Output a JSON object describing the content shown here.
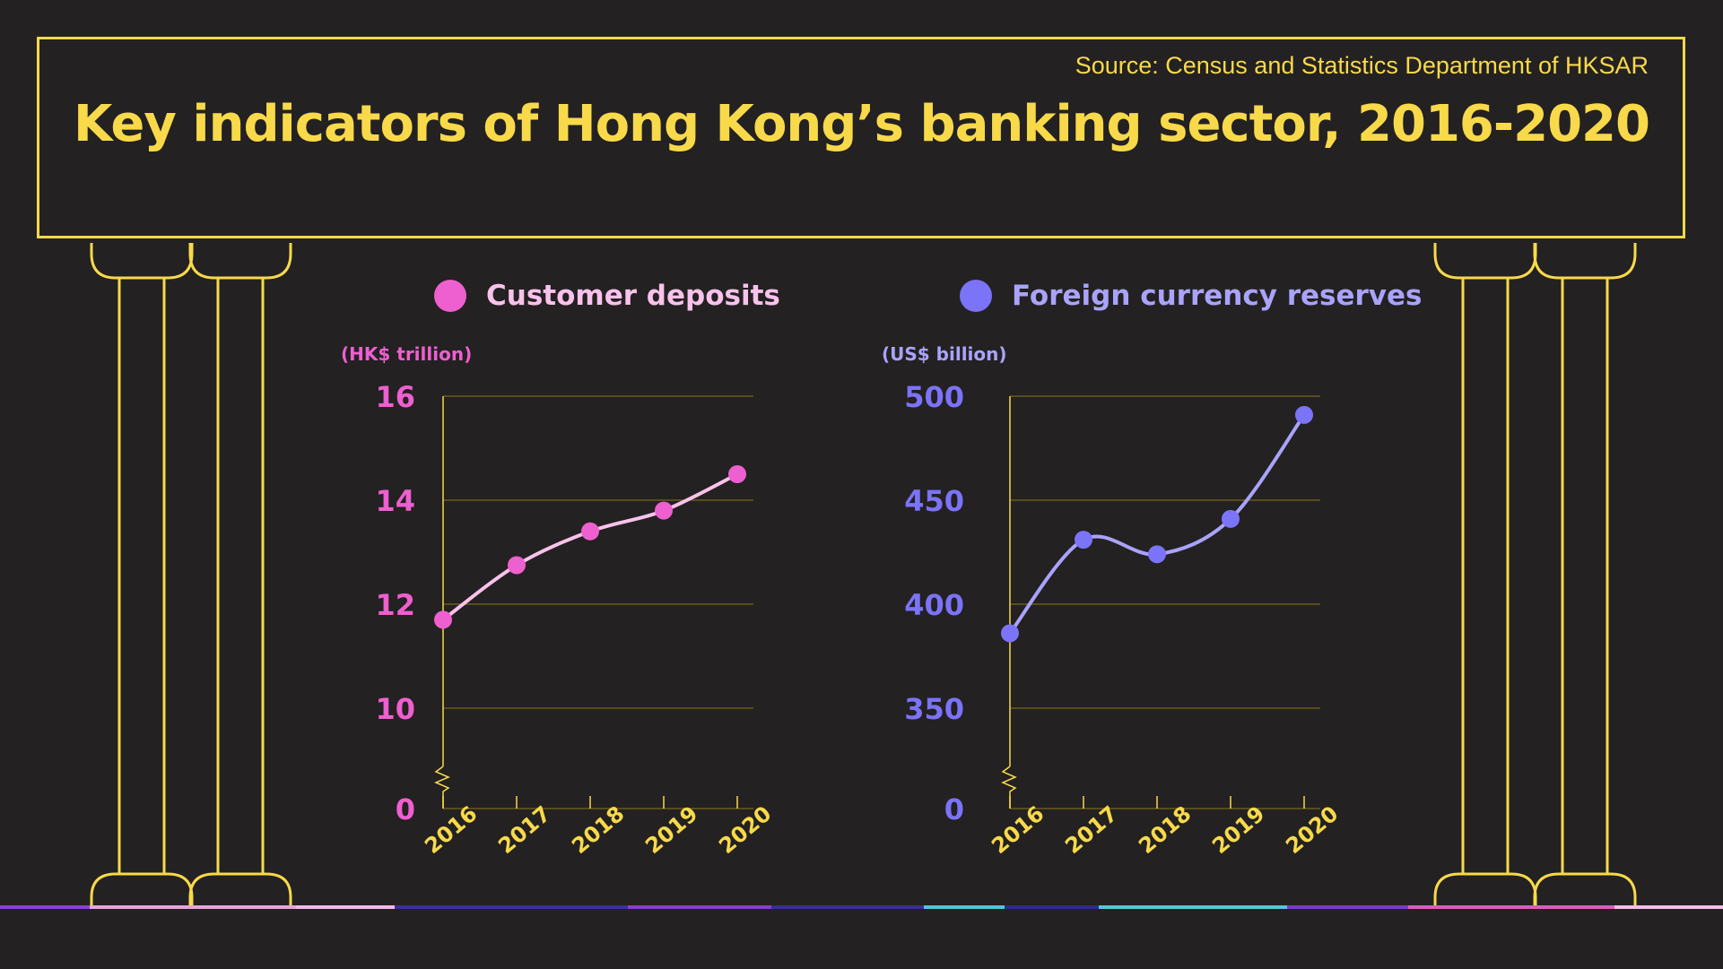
{
  "source": "Source: Census and Statistics Department of HKSAR",
  "title": "Key indicators of Hong Kong’s banking sector, 2016-2020",
  "colors": {
    "background": "#232121",
    "frame": "#f8d94a",
    "deposits_accent": "#ee5fd0",
    "deposits_line": "#f9c2ec",
    "reserves_accent": "#7b73f8",
    "reserves_line": "#a9a3fb",
    "grid": "#6b5a1c"
  },
  "chart_data": [
    {
      "type": "line",
      "id": "deposits",
      "legend": "Customer deposits",
      "unit": "(HK$ trillion)",
      "x": [
        "2016",
        "2017",
        "2018",
        "2019",
        "2020"
      ],
      "series": [
        {
          "name": "Customer deposits",
          "values": [
            11.7,
            12.75,
            13.4,
            13.8,
            14.5
          ]
        }
      ],
      "yticks": [
        0,
        10,
        12,
        14,
        16
      ],
      "ylim": [
        10,
        16
      ],
      "axis_break": true
    },
    {
      "type": "line",
      "id": "reserves",
      "legend": "Foreign currency reserves",
      "unit": "(US$ billion)",
      "x": [
        "2016",
        "2017",
        "2018",
        "2019",
        "2020"
      ],
      "series": [
        {
          "name": "Foreign currency reserves",
          "values": [
            386,
            431,
            424,
            441,
            491
          ]
        }
      ],
      "yticks": [
        0,
        350,
        400,
        450,
        500
      ],
      "ylim": [
        350,
        500
      ],
      "axis_break": true
    }
  ]
}
